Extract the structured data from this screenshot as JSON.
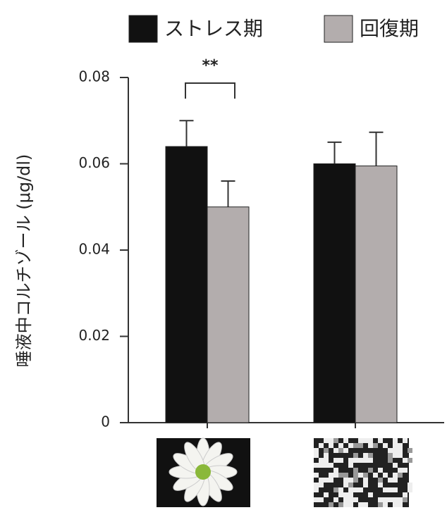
{
  "chart_data": {
    "type": "bar",
    "y_label": "唾液中コルチゾール (μg/dl)",
    "annotation": "**",
    "categories": [
      null,
      null
    ],
    "series": [
      {
        "name": "ストレス期",
        "color": "#111111",
        "values": [
          0.064,
          0.06
        ],
        "errors": [
          0.006,
          0.005
        ]
      },
      {
        "name": "回復期",
        "color": "#b3adad",
        "values": [
          0.05,
          0.0595
        ],
        "errors": [
          0.006,
          0.0078
        ]
      }
    ],
    "ylim": [
      0,
      0.08
    ],
    "yticks": [
      0,
      0.02,
      0.04,
      0.06,
      0.08
    ],
    "grid": false
  }
}
